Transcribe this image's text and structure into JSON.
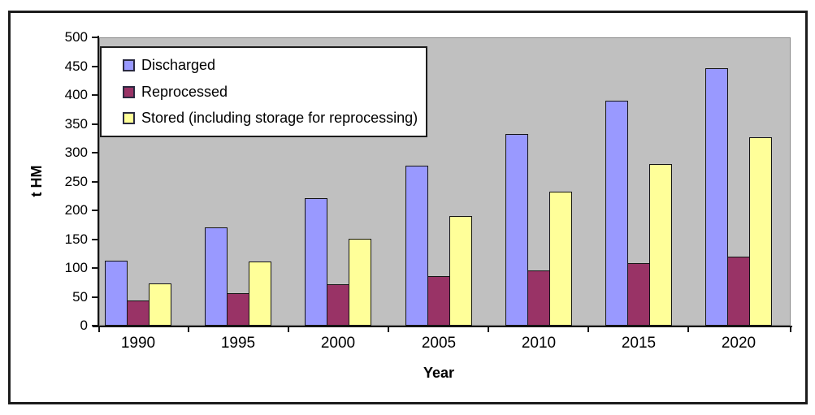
{
  "chart_data": {
    "type": "bar",
    "title": "",
    "xlabel": "Year",
    "ylabel": "t HM",
    "categories": [
      "1990",
      "1995",
      "2000",
      "2005",
      "2010",
      "2015",
      "2020"
    ],
    "series": [
      {
        "name": "Discharged",
        "color": "#9999FF",
        "values": [
          112,
          170,
          221,
          278,
          333,
          390,
          446
        ]
      },
      {
        "name": "Reprocessed",
        "color": "#993366",
        "values": [
          44,
          56,
          72,
          86,
          96,
          108,
          120
        ]
      },
      {
        "name": "Stored (including storage for reprocessing)",
        "color": "#FFFF99",
        "values": [
          73,
          111,
          150,
          190,
          233,
          280,
          327
        ]
      }
    ],
    "ylim": [
      0,
      500
    ],
    "ytick_step": 50,
    "yticks": [
      0,
      50,
      100,
      150,
      200,
      250,
      300,
      350,
      400,
      450,
      500
    ],
    "grid": false,
    "legend_position": "top-left",
    "plot_background": "#C0C0C0",
    "bar_border_color": "#141414",
    "axis_color": "#141414"
  }
}
